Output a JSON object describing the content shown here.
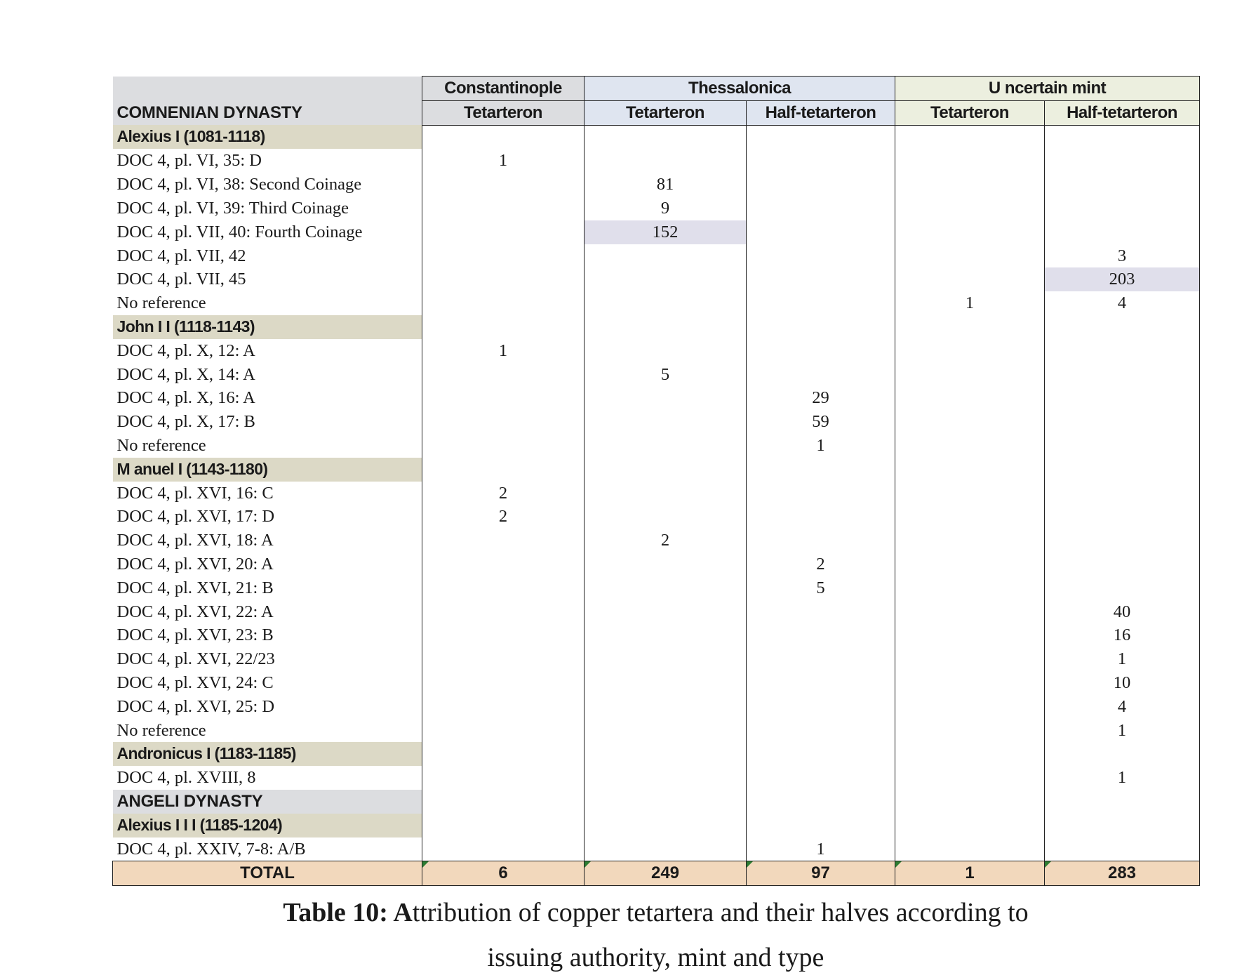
{
  "header": {
    "mints": [
      "Constantinople",
      "Thessalonica",
      "U ncertain mint"
    ],
    "dynasty": "COMNENIAN DYNASTY",
    "denominations": [
      "Tetarteron",
      "Tetarteron",
      "Half-tetarteron",
      "Tetarteron",
      "Half-tetarteron"
    ]
  },
  "rows": [
    {
      "type": "ruler",
      "label": "Alexius I (1081-1118)"
    },
    {
      "type": "data",
      "label": "DOC 4, pl. VI, 35: D",
      "v": [
        "1",
        "",
        "",
        "",
        ""
      ]
    },
    {
      "type": "data",
      "label": "DOC 4, pl. VI, 38: Second Coinage",
      "v": [
        "",
        "81",
        "",
        "",
        ""
      ]
    },
    {
      "type": "data",
      "label": "DOC 4, pl. VI, 39: Third Coinage",
      "v": [
        "",
        "9",
        "",
        "",
        ""
      ]
    },
    {
      "type": "data",
      "label": "DOC 4, pl. VII, 40: Fourth Coinage",
      "v": [
        "",
        "152",
        "",
        "",
        ""
      ],
      "hl": 1
    },
    {
      "type": "data",
      "label": "DOC 4, pl. VII, 42",
      "v": [
        "",
        "",
        "",
        "",
        "3"
      ]
    },
    {
      "type": "data",
      "label": "DOC 4, pl. VII, 45",
      "v": [
        "",
        "",
        "",
        "",
        "203"
      ],
      "hl": 4
    },
    {
      "type": "data",
      "label": "No reference",
      "v": [
        "",
        "",
        "",
        "1",
        "4"
      ]
    },
    {
      "type": "ruler",
      "label": "John I I (1118-1143)"
    },
    {
      "type": "data",
      "label": "DOC 4, pl. X, 12: A",
      "v": [
        "1",
        "",
        "",
        "",
        ""
      ]
    },
    {
      "type": "data",
      "label": "DOC 4, pl. X, 14: A",
      "v": [
        "",
        "5",
        "",
        "",
        ""
      ]
    },
    {
      "type": "data",
      "label": "DOC 4, pl. X, 16: A",
      "v": [
        "",
        "",
        "29",
        "",
        ""
      ]
    },
    {
      "type": "data",
      "label": "DOC 4, pl. X, 17: B",
      "v": [
        "",
        "",
        "59",
        "",
        ""
      ]
    },
    {
      "type": "data",
      "label": "No reference",
      "v": [
        "",
        "",
        "1",
        "",
        ""
      ]
    },
    {
      "type": "ruler",
      "label": "M anuel I (1143-1180)"
    },
    {
      "type": "data",
      "label": "DOC 4, pl. XVI, 16: C",
      "v": [
        "2",
        "",
        "",
        "",
        ""
      ]
    },
    {
      "type": "data",
      "label": "DOC 4, pl. XVI, 17: D",
      "v": [
        "2",
        "",
        "",
        "",
        ""
      ]
    },
    {
      "type": "data",
      "label": "DOC 4, pl. XVI, 18: A",
      "v": [
        "",
        "2",
        "",
        "",
        ""
      ]
    },
    {
      "type": "data",
      "label": "DOC 4, pl. XVI, 20: A",
      "v": [
        "",
        "",
        "2",
        "",
        ""
      ]
    },
    {
      "type": "data",
      "label": "DOC 4, pl. XVI, 21: B",
      "v": [
        "",
        "",
        "5",
        "",
        ""
      ]
    },
    {
      "type": "data",
      "label": "DOC 4, pl. XVI, 22: A",
      "v": [
        "",
        "",
        "",
        "",
        "40"
      ]
    },
    {
      "type": "data",
      "label": "DOC 4, pl. XVI, 23: B",
      "v": [
        "",
        "",
        "",
        "",
        "16"
      ]
    },
    {
      "type": "data",
      "label": "DOC 4, pl. XVI, 22/23",
      "v": [
        "",
        "",
        "",
        "",
        "1"
      ]
    },
    {
      "type": "data",
      "label": "DOC 4, pl. XVI, 24: C",
      "v": [
        "",
        "",
        "",
        "",
        "10"
      ]
    },
    {
      "type": "data",
      "label": "DOC 4, pl. XVI, 25: D",
      "v": [
        "",
        "",
        "",
        "",
        "4"
      ]
    },
    {
      "type": "data",
      "label": "No reference",
      "v": [
        "",
        "",
        "",
        "",
        "1"
      ]
    },
    {
      "type": "ruler",
      "label": "Andronicus I (1183-1185)"
    },
    {
      "type": "data",
      "label": "DOC 4, pl. XVIII, 8",
      "v": [
        "",
        "",
        "",
        "",
        "1"
      ]
    },
    {
      "type": "dynasty",
      "label": "ANGELI DYNASTY"
    },
    {
      "type": "ruler",
      "label": "Alexius I I I (1185-1204)"
    },
    {
      "type": "data",
      "label": "DOC 4, pl. XXIV, 7-8: A/B",
      "v": [
        "",
        "",
        "1",
        "",
        ""
      ]
    }
  ],
  "total": {
    "label": "TOTAL",
    "values": [
      "6",
      "249",
      "97",
      "1",
      "283"
    ]
  },
  "caption": {
    "bold_part": "Table 10: A",
    "rest_line1": "ttribution of copper tetartera and their halves according to",
    "line2": "issuing authority, mint and type"
  },
  "colors": {
    "header_grey": "#dcdde0",
    "thessalonica_blue": "#dfe5f0",
    "uncertain_green": "#ecefdf",
    "ruler_tan": "#dcd9c6",
    "highlight_lavender": "#e0dfeb",
    "total_peach": "#f2d8bc"
  }
}
